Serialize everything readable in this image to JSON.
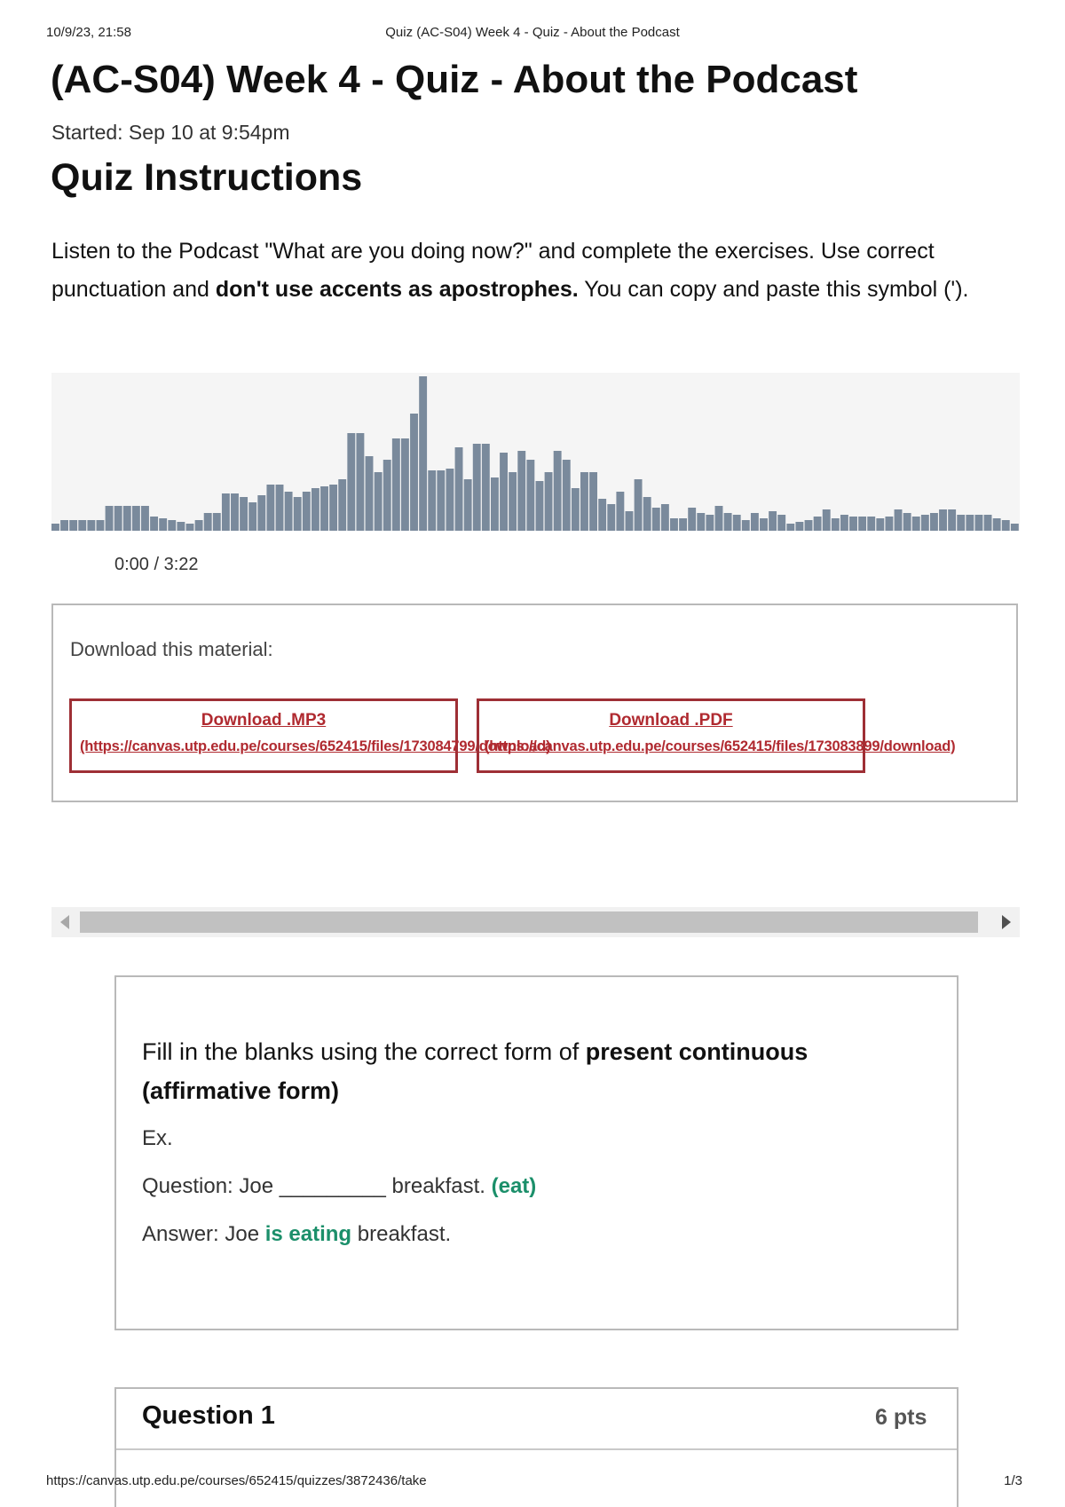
{
  "print_header": {
    "datetime": "10/9/23, 21:58",
    "title": "Quiz (AC-S04) Week 4 - Quiz - About the Podcast"
  },
  "page": {
    "title": "(AC-S04) Week 4 - Quiz - About the Podcast",
    "started": "Started: Sep 10 at 9:54pm"
  },
  "instructions": {
    "heading": "Quiz Instructions",
    "text_1": "Listen to the Podcast \"What are you doing now?\" and complete the exercises. Use correct punctuation and ",
    "text_bold": "don't use accents as apostrophes.",
    "text_2": " You can copy and paste this symbol (')."
  },
  "audio": {
    "time": "0:00 / 3:22",
    "waveform_levels": [
      8,
      12,
      12,
      12,
      12,
      12,
      28,
      28,
      28,
      28,
      28,
      16,
      14,
      12,
      10,
      8,
      12,
      20,
      20,
      42,
      42,
      38,
      32,
      40,
      52,
      52,
      44,
      38,
      44,
      48,
      50,
      52,
      58,
      110,
      110,
      84,
      66,
      80,
      104,
      104,
      132,
      174,
      68,
      68,
      70,
      94,
      58,
      98,
      98,
      60,
      88,
      66,
      90,
      80,
      56,
      66,
      90,
      80,
      48,
      66,
      66,
      36,
      30,
      44,
      22,
      58,
      38,
      26,
      30,
      14,
      14,
      26,
      20,
      18,
      28,
      20,
      18,
      12,
      20,
      14,
      22,
      18,
      8,
      10,
      12,
      16,
      24,
      14,
      18,
      16,
      16,
      16,
      14,
      16,
      24,
      20,
      16,
      18,
      20,
      24,
      24,
      18,
      18,
      18,
      18,
      14,
      12,
      8
    ]
  },
  "downloads": {
    "label": "Download this material:",
    "mp3": {
      "title": "Download .MP3",
      "url": "(https://canvas.utp.edu.pe/courses/652415/files/173084799/download)"
    },
    "pdf": {
      "title": "Download .PDF",
      "url": "(https://canvas.utp.edu.pe/courses/652415/files/173083899/download)"
    }
  },
  "example": {
    "head_1": "Fill in the blanks using the correct form of ",
    "head_bold": "present continuous (affirmative form)",
    "ex_label": "Ex.",
    "question_1": "Question: Joe _________ breakfast. ",
    "question_hint": "(eat)",
    "answer_1": "Answer: Joe ",
    "answer_bold": "is eating",
    "answer_2": " breakfast."
  },
  "question": {
    "title": "Question 1",
    "points": "6 pts"
  },
  "print_footer": {
    "url": "https://canvas.utp.edu.pe/courses/652415/quizzes/3872436/take",
    "page": "1/3"
  },
  "colors": {
    "link_red": "#b02a30",
    "button_border": "#9e2f35",
    "accent_green": "#1b8f6a",
    "waveform": "#7a8a9c"
  }
}
